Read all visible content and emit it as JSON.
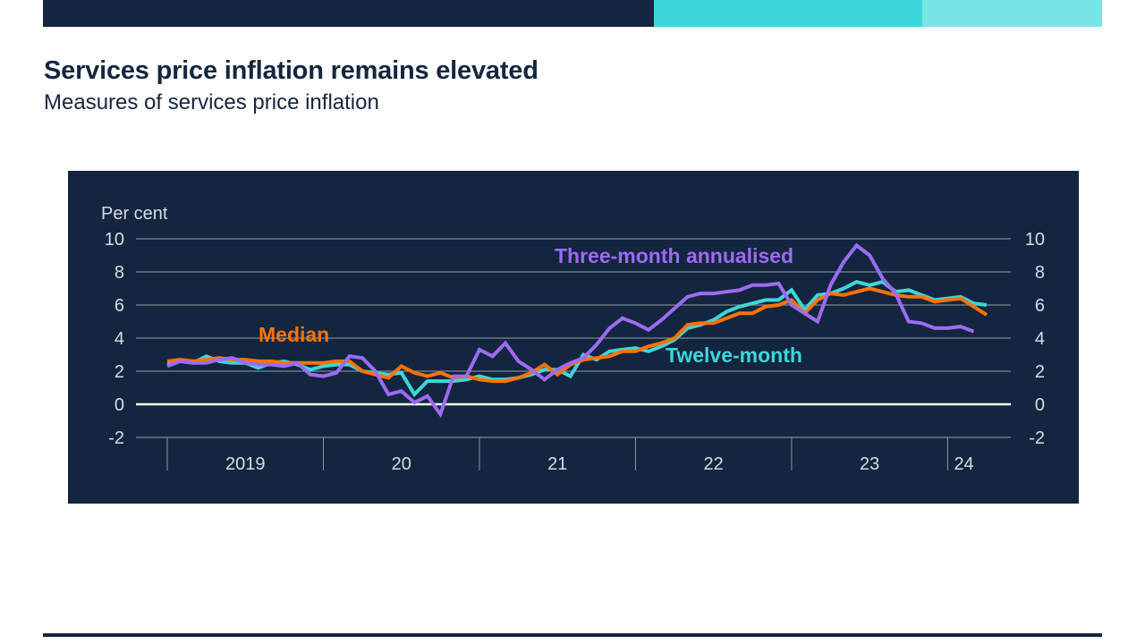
{
  "header": {
    "title": "Services price inflation remains elevated",
    "subtitle": "Measures of services price inflation",
    "accent_colors": [
      "#142640",
      "#3dd7d9",
      "#78e4e5"
    ]
  },
  "chart_data": {
    "type": "line",
    "title": "Services price inflation remains elevated",
    "subtitle": "Measures of services price inflation",
    "ylabel": "Per cent",
    "xlabel": "",
    "ylim": [
      -2,
      10
    ],
    "yticks": [
      10,
      8,
      6,
      4,
      2,
      0,
      -2
    ],
    "ytick_labels": [
      "10",
      "8",
      "6",
      "4",
      "2",
      "0",
      "-2"
    ],
    "x_unit": "months since Jan 2019",
    "xlim": [
      0,
      65
    ],
    "year_labels": [
      {
        "label": "2019",
        "start": 0,
        "end": 12
      },
      {
        "label": "20",
        "start": 12,
        "end": 24
      },
      {
        "label": "21",
        "start": 24,
        "end": 36
      },
      {
        "label": "22",
        "start": 36,
        "end": 48
      },
      {
        "label": "23",
        "start": 48,
        "end": 60
      },
      {
        "label": "24",
        "start": 60,
        "end": 62.5
      }
    ],
    "grid": true,
    "legend": "inline labels",
    "series": [
      {
        "name": "Twelve-month",
        "label": "Twelve-month",
        "color": "#3dd7d9",
        "values": [
          2.4,
          2.6,
          2.5,
          2.9,
          2.6,
          2.5,
          2.5,
          2.2,
          2.5,
          2.6,
          2.4,
          2.1,
          2.3,
          2.4,
          2.4,
          2.0,
          1.9,
          1.8,
          1.9,
          0.6,
          1.4,
          1.4,
          1.4,
          1.5,
          1.7,
          1.5,
          1.5,
          1.6,
          1.8,
          2.1,
          2.1,
          1.7,
          3.0,
          2.7,
          3.2,
          3.3,
          3.4,
          3.2,
          3.5,
          3.9,
          4.6,
          4.8,
          5.1,
          5.6,
          5.9,
          6.1,
          6.3,
          6.3,
          6.9,
          5.7,
          6.6,
          6.7,
          7.0,
          7.4,
          7.2,
          7.4,
          6.8,
          6.9,
          6.6,
          6.3,
          6.4,
          6.5,
          6.1,
          6.0
        ]
      },
      {
        "name": "Median",
        "label": "Median",
        "color": "#ff7300",
        "values": [
          2.6,
          2.7,
          2.6,
          2.7,
          2.8,
          2.7,
          2.7,
          2.6,
          2.6,
          2.5,
          2.5,
          2.5,
          2.5,
          2.6,
          2.6,
          2.0,
          1.8,
          1.6,
          2.3,
          1.9,
          1.7,
          1.9,
          1.6,
          1.7,
          1.5,
          1.4,
          1.4,
          1.6,
          1.9,
          2.4,
          1.8,
          2.4,
          2.7,
          2.8,
          2.9,
          3.2,
          3.2,
          3.5,
          3.7,
          4.0,
          4.8,
          4.9,
          4.9,
          5.2,
          5.5,
          5.5,
          5.9,
          6.0,
          6.3,
          5.5,
          6.3,
          6.7,
          6.6,
          6.8,
          7.0,
          6.8,
          6.6,
          6.5,
          6.5,
          6.2,
          6.3,
          6.4,
          5.9,
          5.4
        ]
      },
      {
        "name": "Three-month annualised",
        "label": "Three-month annualised",
        "color": "#9d6bf2",
        "values": [
          2.3,
          2.6,
          2.5,
          2.5,
          2.7,
          2.8,
          2.5,
          2.4,
          2.4,
          2.3,
          2.5,
          1.8,
          1.7,
          1.9,
          2.9,
          2.8,
          2.0,
          0.6,
          0.8,
          0.1,
          0.5,
          -0.6,
          1.7,
          1.7,
          3.3,
          2.9,
          3.7,
          2.6,
          2.1,
          1.5,
          2.1,
          2.5,
          2.8,
          3.6,
          4.6,
          5.2,
          4.9,
          4.5,
          5.1,
          5.8,
          6.5,
          6.7,
          6.7,
          6.8,
          6.9,
          7.2,
          7.2,
          7.3,
          6.0,
          5.5,
          5.0,
          7.2,
          8.6,
          9.6,
          9.0,
          7.6,
          6.7,
          5.0,
          4.9,
          4.6,
          4.6,
          4.7,
          4.4
        ]
      }
    ],
    "annotations": [
      {
        "text": "Median",
        "series": "Median"
      },
      {
        "text": "Three-month annualised",
        "series": "Three-month annualised"
      },
      {
        "text": "Twelve-month",
        "series": "Twelve-month"
      }
    ]
  }
}
